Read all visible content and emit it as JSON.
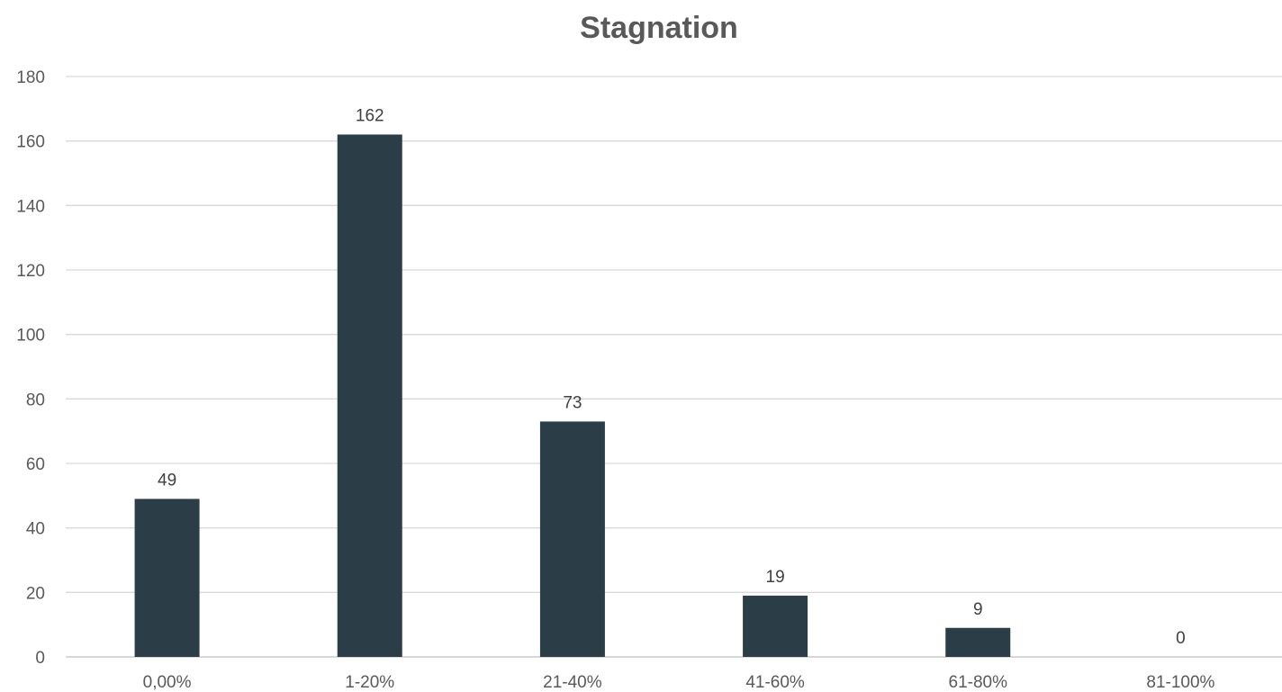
{
  "chart_data": {
    "type": "bar",
    "title": "Stagnation",
    "categories": [
      "0,00%",
      "1-20%",
      "21-40%",
      "41-60%",
      "61-80%",
      "81-100%"
    ],
    "values": [
      49,
      162,
      73,
      19,
      9,
      0
    ],
    "ylim": [
      0,
      180
    ],
    "yticks": [
      "0",
      "20",
      "40",
      "60",
      "80",
      "100",
      "120",
      "140",
      "160",
      "180"
    ],
    "xlabel": "",
    "ylabel": "",
    "grid": true,
    "legend": "none",
    "bar_color": "#2b3e48",
    "data_labels": true
  }
}
